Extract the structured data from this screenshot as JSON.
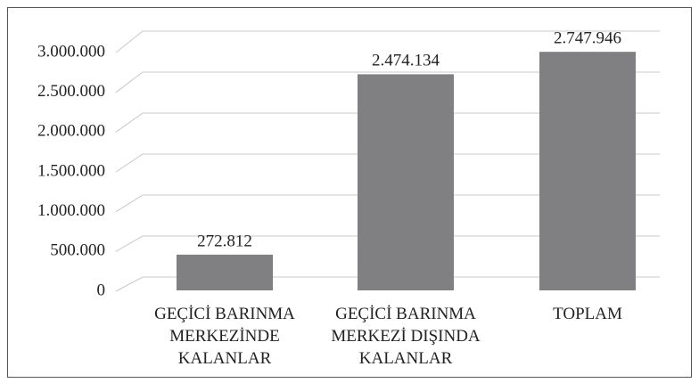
{
  "chart_data": {
    "type": "bar",
    "categories": [
      "GEÇİCİ BARINMA\nMERKEZİNDE\nKALANLAR",
      "GEÇİCİ BARINMA\nMERKEZİ DIŞINDA\nKALANLAR",
      "TOPLAM"
    ],
    "values": [
      272812,
      2474134,
      2747946
    ],
    "value_labels": [
      "272.812",
      "2.474.134",
      "2.747.946"
    ],
    "color": "#808083",
    "ylim": [
      0,
      3000000
    ],
    "yticks": [
      0,
      {
        "value": 500000,
        "label": "500.000"
      },
      {
        "value": 1000000,
        "label": "1.000.000"
      },
      {
        "value": 1500000,
        "label": "1.500.000"
      },
      {
        "value": 2000000,
        "label": "2.000.000"
      },
      {
        "value": 2500000,
        "label": "2.500.000"
      },
      {
        "value": 3000000,
        "label": "3.000.000"
      }
    ],
    "grid": true
  }
}
